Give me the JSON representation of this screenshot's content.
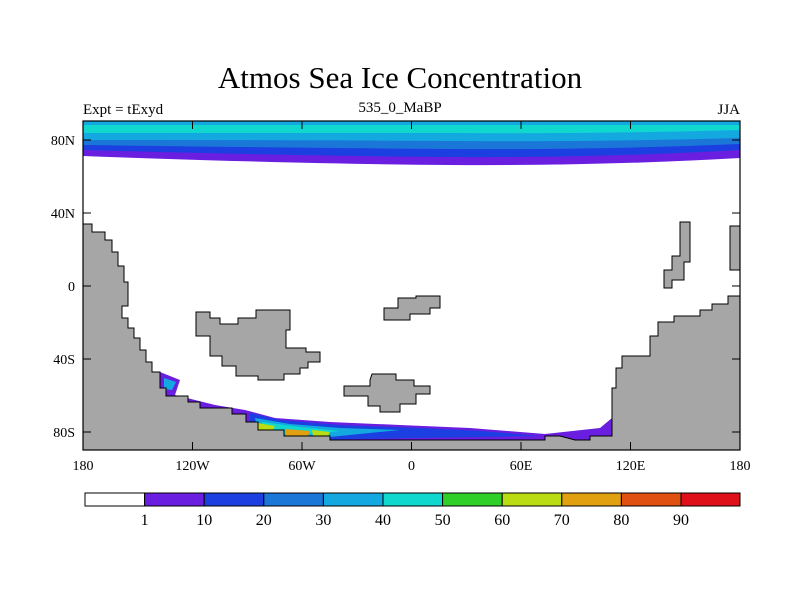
{
  "title": "Atmos Sea Ice Concentration",
  "subtitle_left": "Expt = tExyd",
  "subtitle_center": "535_0_MaBP",
  "subtitle_right": "JJA",
  "y_axis_labels": [
    "80N",
    "40N",
    "0",
    "40S",
    "80S"
  ],
  "x_axis_labels": [
    "180",
    "120W",
    "60W",
    "0",
    "60E",
    "120E",
    "180"
  ],
  "colorbar": {
    "labels": [
      "1",
      "10",
      "20",
      "30",
      "40",
      "50",
      "60",
      "70",
      "80",
      "90"
    ],
    "colors": [
      "#ffffff",
      "#6a1fe0",
      "#1b3fe0",
      "#1a77d8",
      "#13a8e0",
      "#10d8cf",
      "#2fcf28",
      "#b9dc12",
      "#e0a010",
      "#e05010",
      "#e0101a"
    ]
  },
  "colors": {
    "land": "#a6a6a6",
    "outline": "#000000"
  }
}
